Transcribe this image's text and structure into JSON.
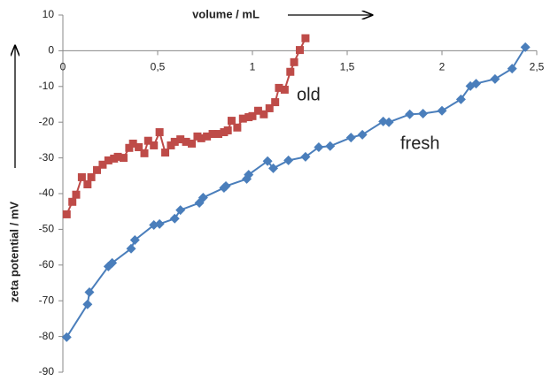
{
  "chart_data": {
    "type": "line",
    "x_label": "volume / mL",
    "y_label": "zeta potential / mV",
    "xlim": [
      0,
      2.5
    ],
    "ylim": [
      -90,
      10
    ],
    "xticks": [
      0,
      {
        "value": 0.5,
        "label": "0,5"
      },
      1,
      {
        "value": 1.5,
        "label": "1,5"
      },
      2,
      {
        "value": 2.5,
        "label": "2,5"
      }
    ],
    "yticks": [
      10,
      0,
      -10,
      -20,
      -30,
      -40,
      -50,
      -60,
      -70,
      -80,
      -90
    ],
    "grid": false,
    "series": [
      {
        "name": "old",
        "color": "#be4b48",
        "marker": "square",
        "x": [
          0.02,
          0.05,
          0.07,
          0.1,
          0.13,
          0.15,
          0.18,
          0.21,
          0.24,
          0.27,
          0.29,
          0.32,
          0.35,
          0.37,
          0.4,
          0.43,
          0.45,
          0.48,
          0.51,
          0.54,
          0.57,
          0.59,
          0.62,
          0.65,
          0.68,
          0.71,
          0.73,
          0.76,
          0.79,
          0.82,
          0.85,
          0.87,
          0.89,
          0.92,
          0.95,
          0.98,
          1.0,
          1.03,
          1.06,
          1.09,
          1.12,
          1.14,
          1.17,
          1.2,
          1.22,
          1.25,
          1.28
        ],
        "values": [
          -45.8,
          -42.3,
          -40.3,
          -35.4,
          -37.4,
          -35.4,
          -33.4,
          -31.9,
          -30.7,
          -30.2,
          -29.7,
          -30,
          -27.2,
          -26,
          -27,
          -28.7,
          -25.2,
          -26.5,
          -22.8,
          -28.5,
          -26.5,
          -25.5,
          -24.8,
          -25.5,
          -26,
          -24,
          -24.5,
          -24,
          -23.3,
          -23.3,
          -22.8,
          -22.3,
          -19.6,
          -21.5,
          -19,
          -18.6,
          -18.3,
          -16.8,
          -17.8,
          -16.1,
          -14.4,
          -10.4,
          -10.9,
          -5.9,
          -3.2,
          0.2,
          3.5
        ]
      },
      {
        "name": "fresh",
        "color": "#4a7ebb",
        "marker": "diamond",
        "x": [
          0.02,
          0.13,
          0.14,
          0.24,
          0.26,
          0.36,
          0.38,
          0.48,
          0.51,
          0.59,
          0.62,
          0.72,
          0.74,
          0.85,
          0.86,
          0.97,
          0.98,
          1.08,
          1.11,
          1.19,
          1.28,
          1.35,
          1.41,
          1.52,
          1.58,
          1.69,
          1.72,
          1.83,
          1.9,
          2.0,
          2.1,
          2.15,
          2.18,
          2.28,
          2.37,
          2.44
        ],
        "values": [
          -80.2,
          -71,
          -67.6,
          -60.4,
          -59.4,
          -55.4,
          -53,
          -48.8,
          -48.5,
          -47,
          -44.6,
          -42.6,
          -41.1,
          -38.4,
          -37.9,
          -35.9,
          -34.7,
          -30.9,
          -32.9,
          -30.7,
          -29.7,
          -27,
          -26.7,
          -24.3,
          -23.5,
          -19.8,
          -20,
          -17.8,
          -17.6,
          -16.8,
          -13.6,
          -9.9,
          -9.2,
          -7.9,
          -5,
          1
        ]
      }
    ]
  }
}
